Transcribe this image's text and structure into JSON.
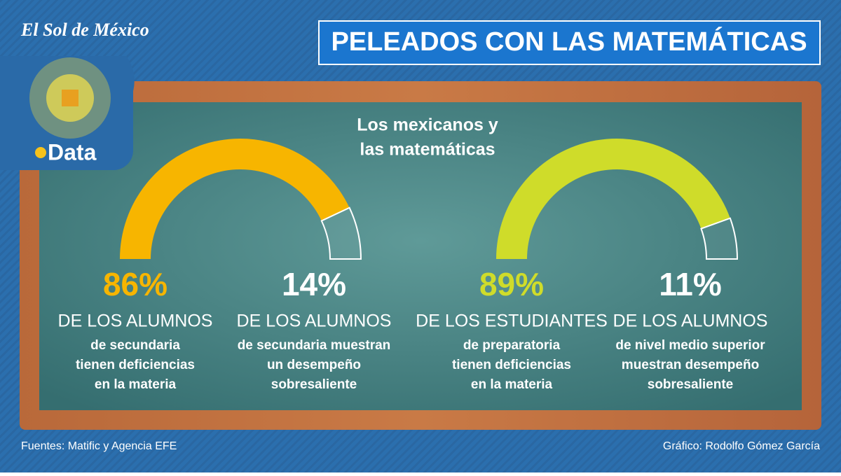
{
  "brand": "El Sol de México",
  "logo": "Data",
  "title": "PELEADOS CON LAS MATEMÁTICAS",
  "subtitle": [
    "Los mexicanos y",
    "las matemáticas"
  ],
  "chart_data": [
    {
      "type": "gauge",
      "values": [
        86,
        14
      ],
      "value_labels": [
        "86%",
        "14%"
      ],
      "colors": [
        "#f7b500",
        "#ffffff"
      ],
      "headlines": [
        "DE LOS ALUMNOS",
        "DE LOS ALUMNOS"
      ],
      "descriptions": [
        [
          "de secundaria",
          "tienen deficiencias",
          "en la materia"
        ],
        [
          "de secundaria muestran",
          "un desempeño",
          "sobresaliente"
        ]
      ]
    },
    {
      "type": "gauge",
      "values": [
        89,
        11
      ],
      "value_labels": [
        "89%",
        "11%"
      ],
      "colors": [
        "#cfdc2a",
        "#ffffff"
      ],
      "headlines": [
        "DE LOS ESTUDIANTES",
        "DE LOS ALUMNOS"
      ],
      "descriptions": [
        [
          "de preparatoria",
          "tienen deficiencias",
          "en la materia"
        ],
        [
          "de nivel medio superior",
          "muestran desempeño",
          "sobresaliente"
        ]
      ]
    }
  ],
  "footer": {
    "source": "Fuentes: Matific y Agencia EFE",
    "credit": "Gráfico: Rodolfo Gómez García"
  }
}
